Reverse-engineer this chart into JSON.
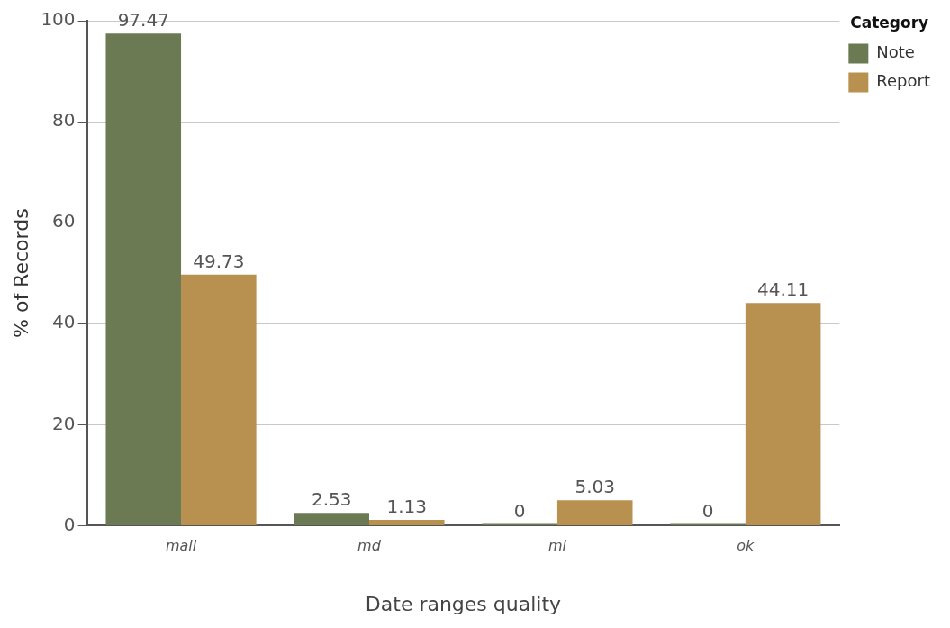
{
  "chart_data": {
    "type": "bar",
    "xlabel": "Date ranges quality",
    "ylabel": "% of Records",
    "legend_title": "Category",
    "categories": [
      "mall",
      "md",
      "mi",
      "ok"
    ],
    "series": [
      {
        "name": "Note",
        "color": "#6b7a52",
        "values": [
          97.47,
          2.53,
          0,
          0
        ]
      },
      {
        "name": "Report",
        "color": "#b89150",
        "values": [
          49.73,
          1.13,
          5.03,
          44.11
        ]
      }
    ],
    "ylim": [
      0,
      100
    ],
    "yticks": [
      0,
      20,
      40,
      60,
      80,
      100
    ],
    "grid": "y",
    "legend": "top right",
    "data_labels": true
  }
}
